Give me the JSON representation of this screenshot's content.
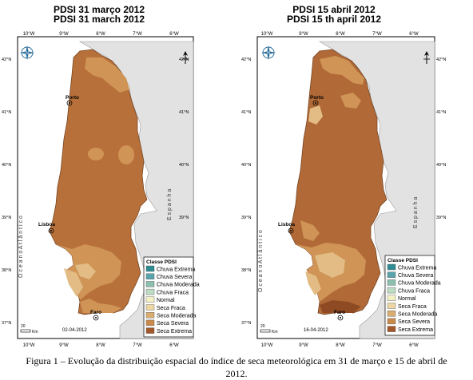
{
  "maps": [
    {
      "title_pt": "PDSI 31 março 2012",
      "title_en": "PDSI 31 march 2012",
      "date_stamp": "02-04-2012",
      "lon_ticks": [
        "10°W",
        "9°W",
        "8°W",
        "7°W",
        "6°W"
      ],
      "lat_ticks": [
        "42°N",
        "41°N",
        "40°N",
        "39°N",
        "38°N",
        "37°N"
      ],
      "cities": [
        "Porto",
        "Lisboa",
        "Faro"
      ],
      "ocean_label": "O c e a n o   A t l â n t i c o",
      "spain_label": "E s p a n h a",
      "scale_label": "20",
      "scale_unit": "Km",
      "compass_label": "N"
    },
    {
      "title_pt": "PDSI 15 abril 2012",
      "title_en": "PDSI 15 th april 2012",
      "date_stamp": "16-04-2012",
      "lon_ticks": [
        "10°W",
        "9°W",
        "8°W",
        "7°W",
        "6°W"
      ],
      "lat_ticks": [
        "42°N",
        "41°N",
        "40°N",
        "39°N",
        "38°N",
        "37°N"
      ],
      "cities": [
        "Porto",
        "Lisboa",
        "Faro"
      ],
      "ocean_label": "O c e a n o   A t l â n t i c o",
      "spain_label": "E s p a n h a",
      "scale_label": "20",
      "scale_unit": "Km",
      "compass_label": "N"
    }
  ],
  "legend": {
    "title": "Classe PDSI",
    "classes": [
      {
        "label": "Chuva Extrema",
        "color": "#2e8c93"
      },
      {
        "label": "Chuva Severa",
        "color": "#58a3ac"
      },
      {
        "label": "Chuva Moderada",
        "color": "#8cbfae"
      },
      {
        "label": "Chuva Fraca",
        "color": "#bcdcc3"
      },
      {
        "label": "Normal",
        "color": "#f3f0c5"
      },
      {
        "label": "Seca Fraca",
        "color": "#ecd7a3"
      },
      {
        "label": "Seca Moderada",
        "color": "#d9ad6f"
      },
      {
        "label": "Seca Severa",
        "color": "#c98a4b"
      },
      {
        "label": "Seca Extrema",
        "color": "#a2582a"
      }
    ]
  },
  "colors": {
    "sea": "#ffffff",
    "spain": "#e2e2e2",
    "frame": "#000000"
  },
  "caption": {
    "line1": "Figura 1 – Evolução da distribuição espacial do índice de seca meteorológica em 31 de março e 15 de abril de",
    "line2": "2012."
  }
}
